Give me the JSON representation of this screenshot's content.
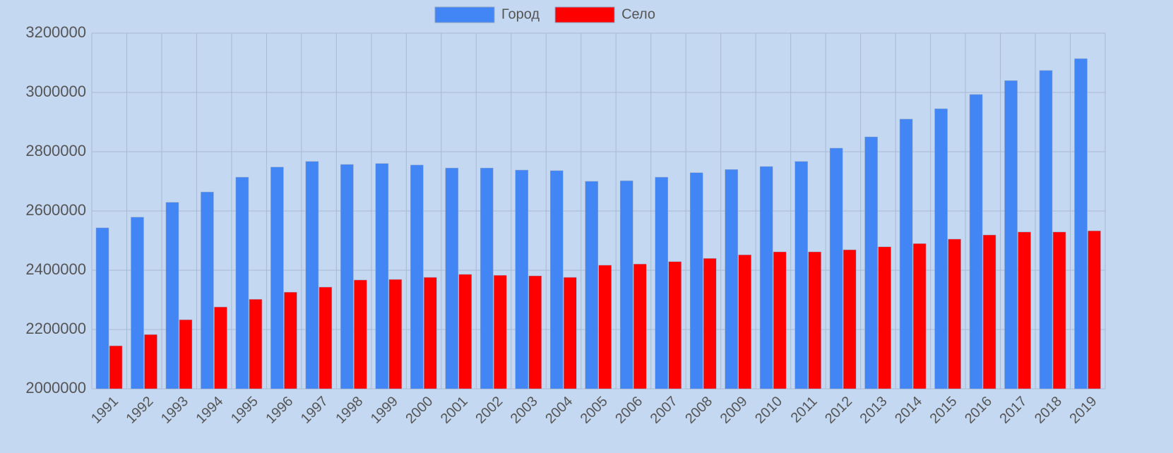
{
  "chart_data": {
    "type": "bar",
    "categories": [
      "1991",
      "1992",
      "1993",
      "1994",
      "1995",
      "1996",
      "1997",
      "1998",
      "1999",
      "2000",
      "2001",
      "2002",
      "2003",
      "2004",
      "2005",
      "2006",
      "2007",
      "2008",
      "2009",
      "2010",
      "2011",
      "2012",
      "2013",
      "2014",
      "2015",
      "2016",
      "2017",
      "2018",
      "2019"
    ],
    "series": [
      {
        "name": "Город",
        "color": "#4285f4",
        "values": [
          2543000,
          2579000,
          2629000,
          2664000,
          2714000,
          2748000,
          2767000,
          2757000,
          2760000,
          2755000,
          2745000,
          2745000,
          2738000,
          2736000,
          2700000,
          2702000,
          2714000,
          2729000,
          2740000,
          2750000,
          2767000,
          2812000,
          2850000,
          2910000,
          2945000,
          2993000,
          3040000,
          3074000,
          3114000
        ]
      },
      {
        "name": "Село",
        "color": "#ff0000",
        "values": [
          2145000,
          2183000,
          2233000,
          2276000,
          2302000,
          2326000,
          2343000,
          2367000,
          2369000,
          2376000,
          2386000,
          2383000,
          2381000,
          2376000,
          2417000,
          2421000,
          2429000,
          2440000,
          2452000,
          2462000,
          2462000,
          2469000,
          2479000,
          2490000,
          2505000,
          2519000,
          2529000,
          2529000,
          2533000
        ]
      }
    ],
    "ylim": [
      2000000,
      3200000
    ],
    "yticks": [
      2000000,
      2200000,
      2400000,
      2600000,
      2800000,
      3000000,
      3200000
    ],
    "grid": true,
    "legend": "top"
  }
}
